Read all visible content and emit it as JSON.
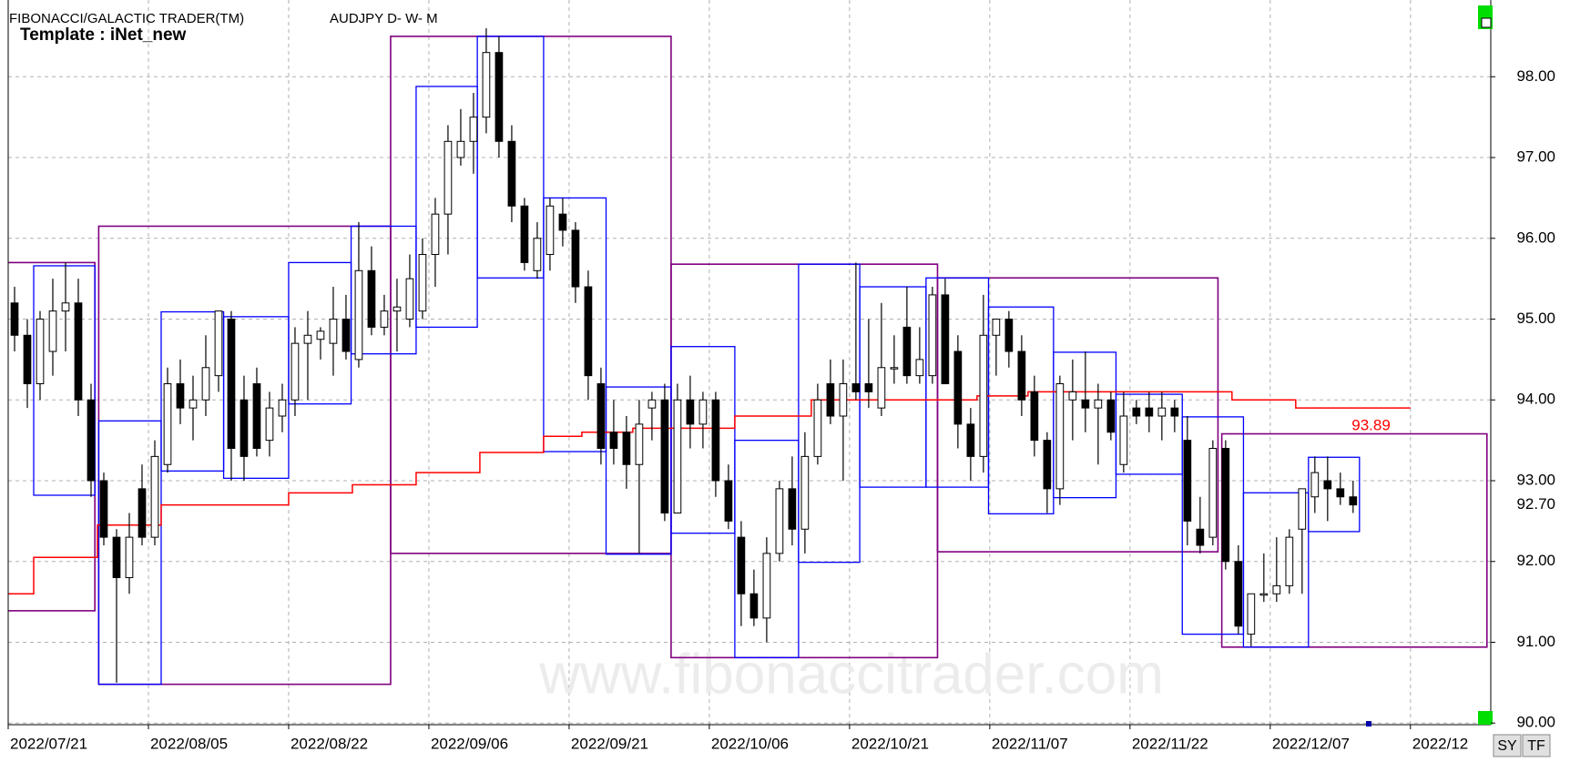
{
  "header": {
    "title": "FIBONACCI/GALACTIC TRADER(TM)",
    "symbol": "AUDJPY D- W- M",
    "template": "Template : iNet_new"
  },
  "watermark": "www.fibonaccitrader.com",
  "buttons": [
    "SY",
    "TF"
  ],
  "chart_data": {
    "type": "candlestick",
    "xlim": [
      0,
      116.3
    ],
    "ylim": [
      89.98,
      98.95
    ],
    "xticks": [
      {
        "value": 0,
        "label": "2022/07/21"
      },
      {
        "value": 11,
        "label": "2022/08/05"
      },
      {
        "value": 22,
        "label": "2022/08/22"
      },
      {
        "value": 33,
        "label": "2022/09/06"
      },
      {
        "value": 44,
        "label": "2022/09/21"
      },
      {
        "value": 55,
        "label": "2022/10/06"
      },
      {
        "value": 66,
        "label": "2022/10/21"
      },
      {
        "value": 77,
        "label": "2022/11/07"
      },
      {
        "value": 88,
        "label": "2022/11/22"
      },
      {
        "value": 99,
        "label": "2022/12/07"
      },
      {
        "value": 110,
        "label": "2022/12"
      }
    ],
    "yticks": [
      {
        "value": 90,
        "label": "90.00"
      },
      {
        "value": 91,
        "label": "91.00"
      },
      {
        "value": 92,
        "label": "92.00"
      },
      {
        "value": 93,
        "label": "93.00"
      },
      {
        "value": 94,
        "label": "94.00"
      },
      {
        "value": 95,
        "label": "95.00"
      },
      {
        "value": 96,
        "label": "96.00"
      },
      {
        "value": 97,
        "label": "97.00"
      },
      {
        "value": 98,
        "label": "98.00"
      }
    ],
    "grid": true,
    "last_price": {
      "value": 92.7,
      "label": "92.70"
    },
    "candles": [
      [
        95.2,
        95.4,
        94.6,
        94.8
      ],
      [
        94.8,
        95.0,
        93.9,
        94.2
      ],
      [
        94.2,
        95.1,
        94.0,
        95.0
      ],
      [
        94.6,
        95.5,
        94.3,
        95.1
      ],
      [
        95.1,
        95.7,
        94.6,
        95.2
      ],
      [
        95.2,
        95.5,
        93.8,
        94.0
      ],
      [
        94.0,
        94.2,
        92.8,
        93.0
      ],
      [
        93.0,
        93.1,
        92.2,
        92.3
      ],
      [
        92.3,
        92.4,
        90.5,
        91.8
      ],
      [
        91.8,
        92.6,
        91.6,
        92.3
      ],
      [
        92.9,
        93.2,
        92.2,
        92.3
      ],
      [
        92.3,
        93.5,
        92.2,
        93.3
      ],
      [
        93.2,
        94.4,
        93.1,
        94.2
      ],
      [
        94.2,
        94.5,
        93.7,
        93.9
      ],
      [
        93.9,
        94.3,
        93.5,
        94.0
      ],
      [
        94.0,
        94.8,
        93.8,
        94.4
      ],
      [
        94.3,
        95.1,
        94.1,
        95.1
      ],
      [
        95.0,
        95.1,
        93.0,
        93.4
      ],
      [
        94.0,
        94.3,
        93.0,
        93.3
      ],
      [
        94.2,
        94.4,
        93.3,
        93.4
      ],
      [
        93.5,
        94.1,
        93.3,
        93.9
      ],
      [
        93.8,
        94.2,
        93.6,
        94.0
      ],
      [
        94.0,
        94.9,
        93.8,
        94.7
      ],
      [
        94.7,
        95.1,
        94.0,
        94.8
      ],
      [
        94.75,
        94.9,
        94.5,
        94.85
      ],
      [
        94.7,
        95.4,
        94.3,
        95.0
      ],
      [
        95.0,
        95.3,
        94.5,
        94.6
      ],
      [
        94.5,
        96.2,
        94.4,
        95.6
      ],
      [
        95.6,
        95.9,
        94.8,
        94.9
      ],
      [
        94.9,
        95.3,
        94.8,
        95.1
      ],
      [
        95.1,
        95.5,
        94.6,
        95.15
      ],
      [
        95.0,
        95.8,
        94.9,
        95.5
      ],
      [
        95.1,
        96.0,
        95.0,
        95.8
      ],
      [
        95.8,
        96.5,
        95.4,
        96.3
      ],
      [
        96.3,
        97.4,
        95.8,
        97.2
      ],
      [
        97.0,
        97.6,
        96.9,
        97.2
      ],
      [
        97.2,
        97.8,
        96.8,
        97.5
      ],
      [
        97.5,
        98.6,
        97.3,
        98.3
      ],
      [
        98.3,
        98.5,
        97.0,
        97.2
      ],
      [
        97.2,
        97.4,
        96.2,
        96.4
      ],
      [
        96.4,
        96.5,
        95.6,
        95.7
      ],
      [
        95.6,
        96.2,
        95.5,
        96.0
      ],
      [
        95.8,
        96.5,
        95.6,
        96.4
      ],
      [
        96.3,
        96.5,
        95.9,
        96.1
      ],
      [
        96.1,
        96.2,
        95.2,
        95.4
      ],
      [
        95.4,
        95.6,
        94.0,
        94.3
      ],
      [
        94.2,
        94.4,
        93.2,
        93.4
      ],
      [
        93.6,
        94.0,
        93.2,
        93.4
      ],
      [
        93.6,
        93.8,
        92.9,
        93.2
      ],
      [
        93.2,
        94.0,
        92.1,
        93.7
      ],
      [
        93.9,
        94.1,
        93.5,
        94.0
      ],
      [
        94.0,
        94.2,
        92.5,
        92.6
      ],
      [
        92.6,
        94.2,
        92.6,
        94.0
      ],
      [
        94.0,
        94.3,
        93.4,
        93.7
      ],
      [
        93.7,
        94.1,
        93.4,
        94.0
      ],
      [
        94.0,
        94.1,
        92.8,
        93.0
      ],
      [
        93.0,
        93.2,
        92.4,
        92.5
      ],
      [
        92.3,
        92.5,
        91.2,
        91.6
      ],
      [
        91.6,
        91.9,
        91.2,
        91.3
      ],
      [
        91.3,
        92.3,
        91.0,
        92.1
      ],
      [
        92.1,
        93.0,
        92.0,
        92.9
      ],
      [
        92.9,
        93.3,
        92.2,
        92.4
      ],
      [
        92.4,
        93.6,
        92.1,
        93.3
      ],
      [
        93.3,
        94.2,
        93.2,
        94.0
      ],
      [
        94.2,
        94.5,
        93.7,
        93.8
      ],
      [
        93.8,
        94.5,
        93.0,
        94.2
      ],
      [
        94.2,
        95.7,
        94.0,
        94.1
      ],
      [
        94.2,
        95.0,
        93.9,
        94.1
      ],
      [
        93.9,
        95.2,
        93.8,
        94.4
      ],
      [
        94.4,
        94.8,
        94.2,
        94.4
      ],
      [
        94.9,
        95.4,
        94.2,
        94.3
      ],
      [
        94.3,
        94.9,
        94.2,
        94.5
      ],
      [
        94.3,
        95.4,
        94.2,
        95.3
      ],
      [
        95.3,
        95.5,
        94.2,
        94.2
      ],
      [
        94.6,
        94.8,
        93.4,
        93.7
      ],
      [
        93.7,
        93.9,
        93.0,
        93.3
      ],
      [
        93.3,
        95.3,
        93.1,
        94.8
      ],
      [
        94.8,
        95.0,
        94.3,
        95.0
      ],
      [
        95.0,
        95.1,
        94.4,
        94.6
      ],
      [
        94.6,
        94.8,
        93.8,
        94.0
      ],
      [
        94.1,
        94.3,
        93.3,
        93.5
      ],
      [
        93.5,
        93.6,
        92.6,
        92.9
      ],
      [
        92.9,
        94.3,
        92.7,
        94.2
      ],
      [
        94.0,
        94.5,
        93.5,
        94.1
      ],
      [
        94.0,
        94.6,
        93.6,
        93.9
      ],
      [
        93.9,
        94.2,
        93.2,
        94.0
      ],
      [
        94.0,
        94.1,
        93.5,
        93.6
      ],
      [
        93.2,
        94.1,
        93.1,
        93.8
      ],
      [
        93.9,
        94.0,
        93.7,
        93.8
      ],
      [
        93.9,
        94.1,
        93.6,
        93.8
      ],
      [
        93.8,
        94.1,
        93.5,
        93.9
      ],
      [
        93.9,
        94.0,
        93.6,
        93.8
      ],
      [
        93.5,
        93.8,
        92.2,
        92.5
      ],
      [
        92.4,
        92.8,
        92.1,
        92.2
      ],
      [
        92.3,
        93.5,
        92.2,
        93.4
      ],
      [
        93.4,
        93.5,
        91.9,
        92.0
      ],
      [
        92.0,
        92.2,
        91.1,
        91.2
      ],
      [
        91.1,
        91.6,
        90.95,
        91.6
      ],
      [
        91.6,
        92.1,
        91.5,
        91.6
      ],
      [
        91.6,
        92.3,
        91.5,
        91.7
      ],
      [
        91.7,
        92.4,
        91.6,
        92.3
      ],
      [
        92.4,
        92.9,
        91.6,
        92.9
      ],
      [
        92.8,
        93.3,
        92.6,
        93.1
      ],
      [
        93.0,
        93.3,
        92.5,
        92.9
      ],
      [
        92.9,
        93.1,
        92.7,
        92.8
      ],
      [
        92.8,
        93.0,
        92.6,
        92.7
      ]
    ],
    "up_color": "#ffffff",
    "down_color": "#000000",
    "step_line": {
      "color": "#ff0000",
      "label": "93.89",
      "x": [
        0,
        2,
        7,
        12,
        22,
        27,
        32,
        37,
        42,
        45,
        49,
        57,
        63,
        76,
        80,
        96,
        101,
        110
      ],
      "values": [
        91.6,
        92.05,
        92.45,
        92.7,
        92.85,
        92.95,
        93.1,
        93.35,
        93.55,
        93.6,
        93.65,
        93.8,
        94.0,
        94.05,
        94.1,
        94.0,
        93.9,
        93.9
      ]
    },
    "monthly_boxes": {
      "color": "#800080",
      "boxes": [
        {
          "x": [
            -0.8,
            6.8
          ],
          "high": 95.7,
          "low": 91.39
        },
        {
          "x": [
            7.1,
            30.0
          ],
          "high": 96.15,
          "low": 90.48
        },
        {
          "x": [
            30.0,
            52.0
          ],
          "high": 98.5,
          "low": 92.1
        },
        {
          "x": [
            52.0,
            72.9
          ],
          "high": 95.68,
          "low": 90.81
        },
        {
          "x": [
            72.9,
            94.9
          ],
          "high": 95.51,
          "low": 92.12
        },
        {
          "x": [
            95.2,
            116.0
          ],
          "high": 93.58,
          "low": 90.94
        }
      ]
    },
    "weekly_boxes": {
      "color": "#0000ff",
      "boxes": [
        {
          "x": [
            2.0,
            6.8
          ],
          "high": 95.66,
          "low": 92.82
        },
        {
          "x": [
            7.1,
            12.0
          ],
          "high": 93.74,
          "low": 90.48
        },
        {
          "x": [
            12.0,
            16.9
          ],
          "high": 95.09,
          "low": 93.12
        },
        {
          "x": [
            16.9,
            22.0
          ],
          "high": 95.03,
          "low": 93.03
        },
        {
          "x": [
            22.0,
            26.9
          ],
          "high": 95.7,
          "low": 93.95
        },
        {
          "x": [
            26.9,
            32.0
          ],
          "high": 96.15,
          "low": 94.57
        },
        {
          "x": [
            32.0,
            36.8
          ],
          "high": 97.88,
          "low": 94.9
        },
        {
          "x": [
            36.8,
            42.0
          ],
          "high": 98.5,
          "low": 95.51
        },
        {
          "x": [
            42.0,
            46.9
          ],
          "high": 96.5,
          "low": 93.36
        },
        {
          "x": [
            46.9,
            52.0
          ],
          "high": 94.16,
          "low": 92.09
        },
        {
          "x": [
            52.0,
            57.0
          ],
          "high": 94.66,
          "low": 92.35
        },
        {
          "x": [
            57.0,
            62.0
          ],
          "high": 93.5,
          "low": 90.81
        },
        {
          "x": [
            62.0,
            66.8
          ],
          "high": 95.68,
          "low": 91.99
        },
        {
          "x": [
            66.8,
            72.0
          ],
          "high": 95.4,
          "low": 92.92
        },
        {
          "x": [
            72.0,
            76.9
          ],
          "high": 95.51,
          "low": 92.92
        },
        {
          "x": [
            76.9,
            82.0
          ],
          "high": 95.15,
          "low": 92.59
        },
        {
          "x": [
            82.0,
            86.9
          ],
          "high": 94.59,
          "low": 92.79
        },
        {
          "x": [
            86.9,
            92.1
          ],
          "high": 94.07,
          "low": 93.08
        },
        {
          "x": [
            92.1,
            96.9
          ],
          "high": 93.79,
          "low": 91.1
        },
        {
          "x": [
            96.9,
            102.0
          ],
          "high": 92.85,
          "low": 90.94
        },
        {
          "x": [
            102.0,
            106.0
          ],
          "high": 93.29,
          "low": 92.37
        }
      ]
    }
  }
}
